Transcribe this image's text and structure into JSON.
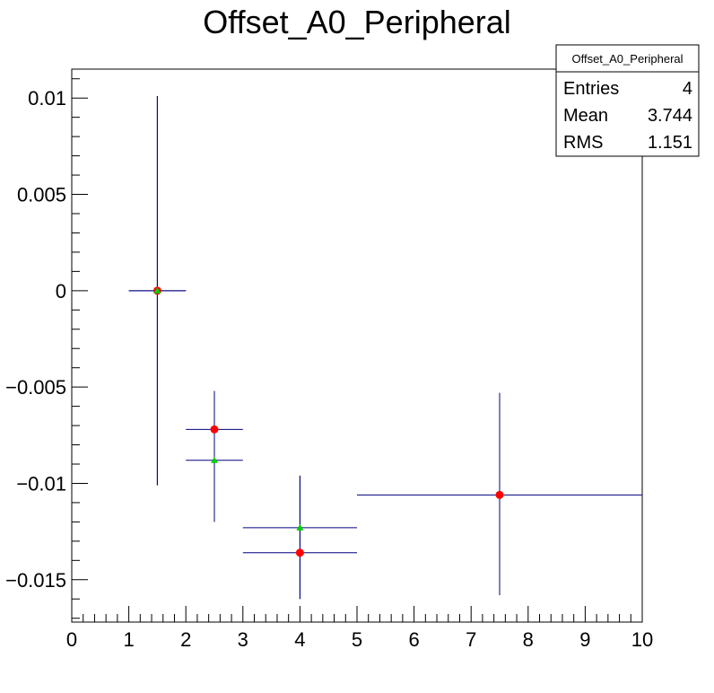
{
  "chart_data": {
    "type": "scatter",
    "title": "Offset_A0_Peripheral",
    "xlabel": "",
    "ylabel": "",
    "xlim": [
      0,
      10
    ],
    "ylim": [
      -0.0172,
      0.0115
    ],
    "x_ticks": [
      0,
      1,
      2,
      3,
      4,
      5,
      6,
      7,
      8,
      9,
      10
    ],
    "x_tick_labels": [
      "0",
      "1",
      "2",
      "3",
      "4",
      "5",
      "6",
      "7",
      "8",
      "9",
      "10"
    ],
    "y_ticks": [
      0.01,
      0.005,
      0,
      -0.005,
      -0.01,
      -0.015
    ],
    "y_tick_labels": [
      "0.01",
      "0.005",
      "0",
      "−0.005",
      "−0.01",
      "−0.015"
    ],
    "grid": false,
    "series": [
      {
        "marker": "circle",
        "color": "#ff0000",
        "error_color": "#000080",
        "points": [
          {
            "x": 1.5,
            "y": 0.0,
            "x_low": 1.0,
            "x_high": 2.0,
            "y_low": -0.0101,
            "y_high": 0.0101
          },
          {
            "x": 2.5,
            "y": -0.0072,
            "x_low": 2.0,
            "x_high": 3.0,
            "y_low": -0.012,
            "y_high": -0.0052
          },
          {
            "x": 4.0,
            "y": -0.0136,
            "x_low": 3.0,
            "x_high": 5.0,
            "y_low": -0.016,
            "y_high": -0.0096
          },
          {
            "x": 7.5,
            "y": -0.0106,
            "x_low": 5.0,
            "x_high": 10.0,
            "y_low": -0.0158,
            "y_high": -0.0053
          }
        ]
      },
      {
        "marker": "triangle",
        "color": "#00cc00",
        "error_color": "#000080",
        "points": [
          {
            "x": 1.5,
            "y": 0.0,
            "x_low": 1.0,
            "x_high": 2.0,
            "y_low": -0.0101,
            "y_high": 0.0101
          },
          {
            "x": 2.5,
            "y": -0.0088,
            "x_low": 2.0,
            "x_high": 3.0,
            "y_low": -0.012,
            "y_high": -0.0052
          },
          {
            "x": 4.0,
            "y": -0.0123,
            "x_low": 3.0,
            "x_high": 5.0,
            "y_low": -0.016,
            "y_high": -0.0096
          }
        ]
      }
    ],
    "stats_box": {
      "title": "Offset_A0_Peripheral",
      "placement": "top-right",
      "rows": [
        {
          "label": "Entries",
          "value": "4"
        },
        {
          "label": "Mean",
          "value": "3.744"
        },
        {
          "label": "RMS",
          "value": "1.151"
        }
      ]
    }
  }
}
